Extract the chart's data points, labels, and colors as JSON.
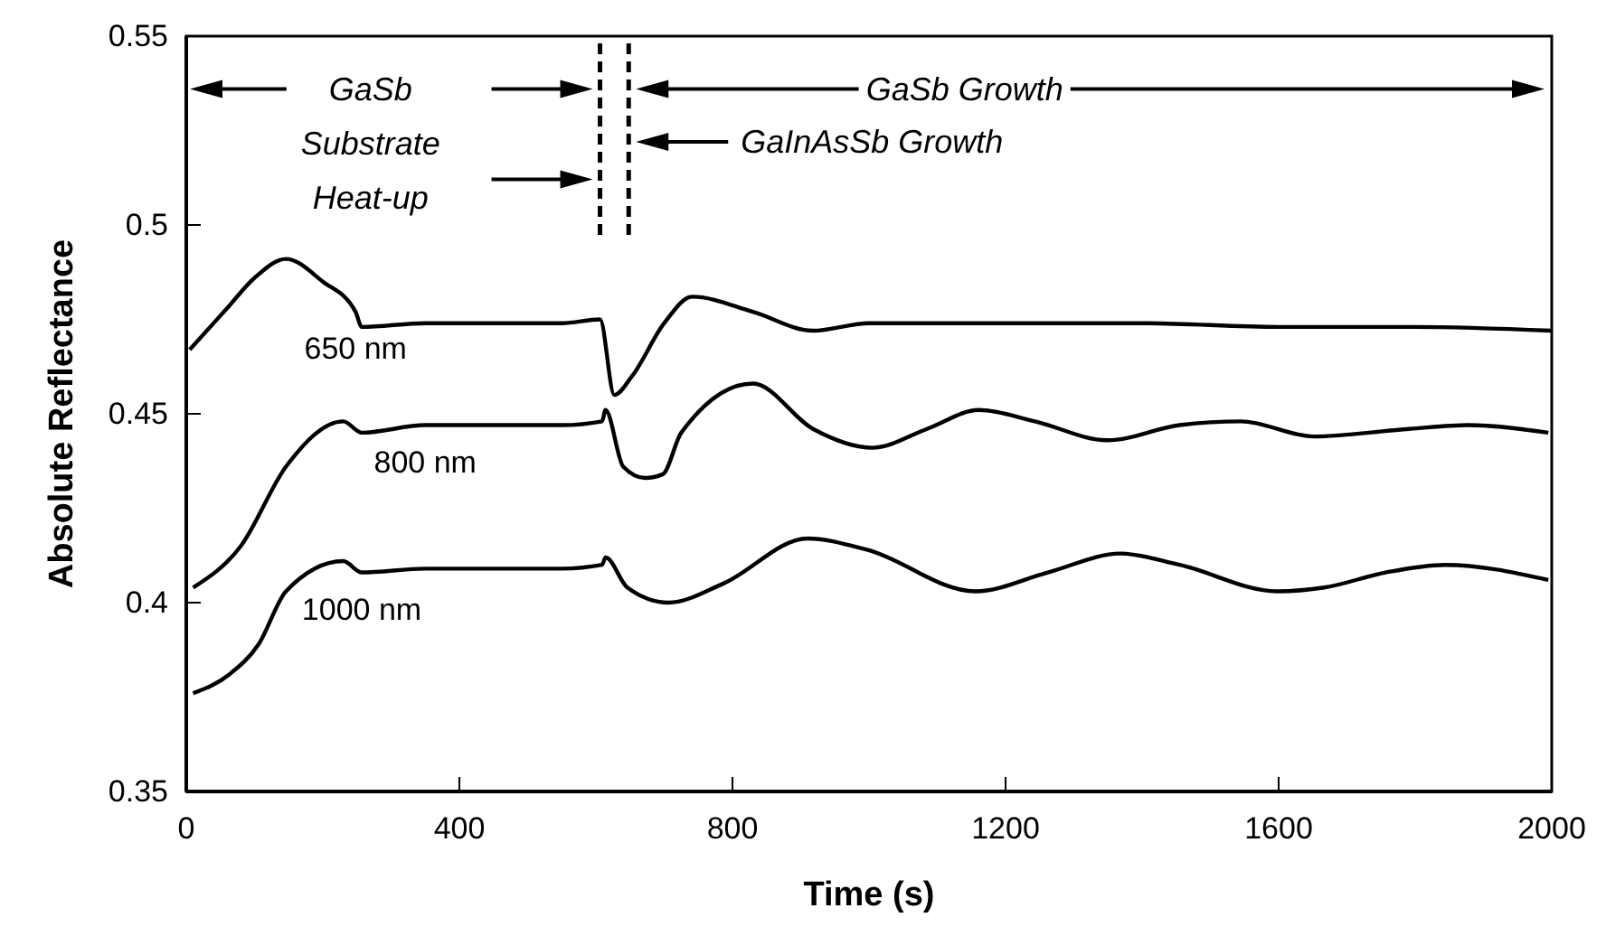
{
  "chart_data": {
    "type": "line",
    "xlabel": "Time (s)",
    "ylabel": "Absolute Reflectance",
    "xlim": [
      0,
      2000
    ],
    "xticks": [
      0,
      400,
      800,
      1200,
      1600,
      2000
    ],
    "ylim": [
      0.35,
      0.55
    ],
    "yticks": [
      0.35,
      0.4,
      0.45,
      0.5,
      0.55
    ],
    "grid": false,
    "marker": "none",
    "line_style": "solid",
    "series": [
      {
        "name": "650 nm",
        "color": "#000000",
        "x": [
          5,
          60,
          100,
          146,
          200,
          248,
          257,
          350,
          450,
          550,
          606,
          627,
          653,
          700,
          741,
          830,
          918,
          1000,
          1200,
          1400,
          1600,
          1800,
          2000
        ],
        "values": [
          0.467,
          0.478,
          0.486,
          0.491,
          0.485,
          0.477,
          0.473,
          0.474,
          0.474,
          0.474,
          0.475,
          0.455,
          0.46,
          0.474,
          0.481,
          0.477,
          0.472,
          0.474,
          0.474,
          0.474,
          0.473,
          0.473,
          0.472
        ]
      },
      {
        "name": "800 nm",
        "color": "#000000",
        "x": [
          10,
          80,
          146,
          230,
          257,
          350,
          450,
          550,
          609,
          614,
          640,
          672,
          698,
          725,
          830,
          918,
          1005,
          1085,
          1161,
          1243,
          1349,
          1455,
          1545,
          1651,
          1791,
          1878,
          1995
        ],
        "values": [
          0.404,
          0.415,
          0.436,
          0.448,
          0.445,
          0.447,
          0.447,
          0.447,
          0.448,
          0.451,
          0.436,
          0.433,
          0.434,
          0.445,
          0.458,
          0.446,
          0.441,
          0.446,
          0.451,
          0.448,
          0.443,
          0.447,
          0.448,
          0.444,
          0.446,
          0.447,
          0.445
        ]
      },
      {
        "name": "1000 nm",
        "color": "#000000",
        "x": [
          10,
          63,
          106,
          146,
          230,
          257,
          350,
          450,
          550,
          609,
          614,
          646,
          706,
          786,
          910,
          997,
          1156,
          1262,
          1368,
          1455,
          1598,
          1667,
          1757,
          1844,
          1995
        ],
        "values": [
          0.376,
          0.381,
          0.389,
          0.403,
          0.411,
          0.408,
          0.409,
          0.409,
          0.409,
          0.41,
          0.412,
          0.404,
          0.4,
          0.405,
          0.417,
          0.414,
          0.403,
          0.408,
          0.413,
          0.41,
          0.403,
          0.404,
          0.408,
          0.41,
          0.406
        ]
      }
    ],
    "ref_lines": [
      {
        "axis": "x",
        "value": 606,
        "line_style": "dashed",
        "color": "#000000"
      },
      {
        "axis": "x",
        "value": 648,
        "line_style": "dashed",
        "color": "#000000"
      }
    ],
    "annotations": [
      "GaSb Substrate Heat-up",
      "GaInAsSb Growth",
      "GaSb Growth"
    ]
  }
}
